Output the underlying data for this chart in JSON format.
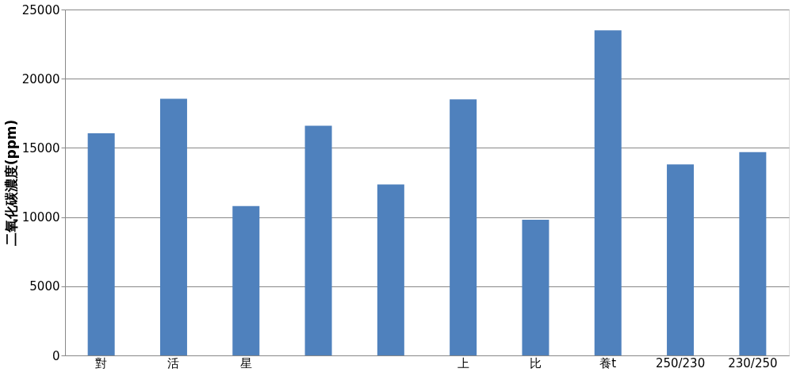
{
  "chart_data": {
    "type": "bar",
    "ylabel": "二氧化碳濃度(ppm)",
    "categories": [
      "對",
      "活",
      "星",
      null,
      null,
      "上",
      "比",
      "養t",
      "250/230",
      "230/250"
    ],
    "values": [
      16050,
      18550,
      10800,
      16600,
      12350,
      18500,
      9800,
      23500,
      13800,
      14700
    ],
    "color": "#4f81bd",
    "ylim": [
      0,
      25000
    ],
    "yticks": [
      0,
      5000,
      10000,
      15000,
      20000,
      25000
    ],
    "grid": "y"
  }
}
